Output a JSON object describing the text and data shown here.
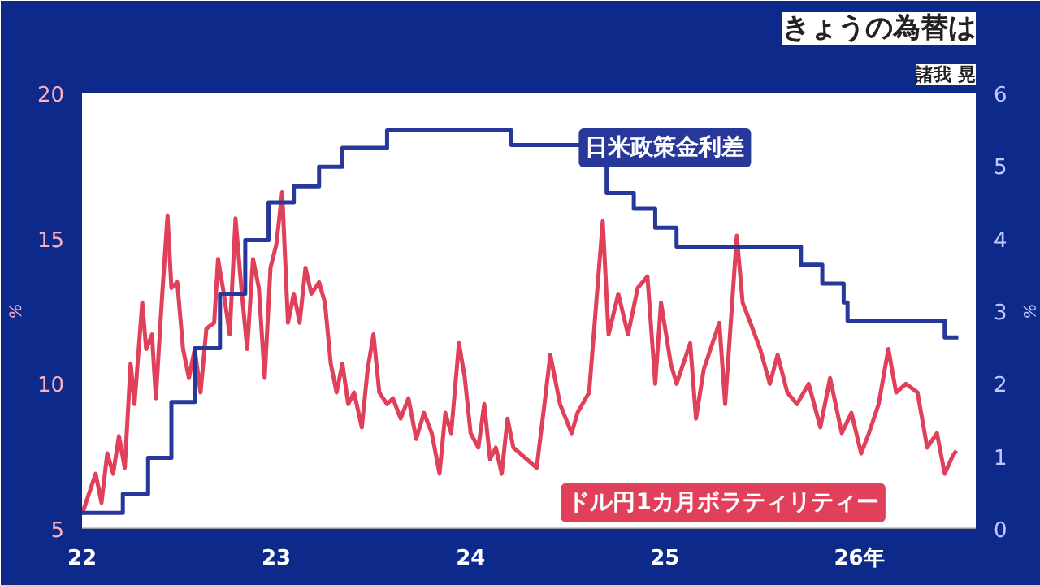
{
  "chart_data": {
    "type": "line",
    "title": "きょうの為替は",
    "subtitle": "諸我 晃",
    "xlim": [
      22,
      26.6
    ],
    "xticks": [
      22,
      23,
      24,
      25,
      {
        "value": 26,
        "label": "26年"
      }
    ],
    "ylim": [
      5,
      20
    ],
    "yticks": [
      5,
      10,
      15,
      20
    ],
    "ylabel": "%",
    "y2lim": [
      0,
      6
    ],
    "y2ticks": [
      0,
      1,
      2,
      3,
      4,
      5,
      6
    ],
    "y2label": "%",
    "grid": false,
    "legend": false,
    "marker": "none",
    "line_style": "solid",
    "series": [
      {
        "name": "ドル円1カ月ボラティリティー",
        "color": "#e0405a",
        "x": [
          22.0,
          22.03,
          22.07,
          22.1,
          22.13,
          22.16,
          22.19,
          22.22,
          22.25,
          22.27,
          22.31,
          22.33,
          22.36,
          22.38,
          22.41,
          22.44,
          22.46,
          22.49,
          22.52,
          22.55,
          22.58,
          22.61,
          22.64,
          22.68,
          22.7,
          22.73,
          22.76,
          22.79,
          22.82,
          22.85,
          22.88,
          22.91,
          22.94,
          22.97,
          23.0,
          23.03,
          23.06,
          23.09,
          23.12,
          23.15,
          23.18,
          23.22,
          23.25,
          23.28,
          23.31,
          23.34,
          23.37,
          23.4,
          23.44,
          23.47,
          23.5,
          23.53,
          23.57,
          23.6,
          23.64,
          23.68,
          23.72,
          23.76,
          23.8,
          23.84,
          23.87,
          23.9,
          23.94,
          23.97,
          24.0,
          24.04,
          24.07,
          24.1,
          24.13,
          24.16,
          24.19,
          24.22,
          24.34,
          24.38,
          24.41,
          24.46,
          24.52,
          24.55,
          24.61,
          24.68,
          24.71,
          24.76,
          24.81,
          24.86,
          24.91,
          24.95,
          24.98,
          25.03,
          25.06,
          25.13,
          25.16,
          25.2,
          25.28,
          25.31,
          25.37,
          25.4,
          25.44,
          25.49,
          25.54,
          25.58,
          25.63,
          25.68,
          25.74,
          25.8,
          25.85,
          25.91,
          25.96,
          26.01,
          26.05,
          26.1,
          26.15,
          26.19,
          26.24,
          26.3,
          26.35,
          26.4,
          26.44,
          26.48,
          26.5
        ],
        "values": [
          5.5,
          6.1,
          6.9,
          5.9,
          7.6,
          6.9,
          8.2,
          7.1,
          10.7,
          9.3,
          12.8,
          11.2,
          11.7,
          9.5,
          12.8,
          15.8,
          13.3,
          13.5,
          11.2,
          10.2,
          11.2,
          9.7,
          11.9,
          12.1,
          14.3,
          13.1,
          11.7,
          15.7,
          13.3,
          11.2,
          14.3,
          13.3,
          10.2,
          14.0,
          14.8,
          16.6,
          12.1,
          13.1,
          12.1,
          14.0,
          13.1,
          13.5,
          12.8,
          10.7,
          9.7,
          10.7,
          9.3,
          9.7,
          8.5,
          10.5,
          11.7,
          9.7,
          9.3,
          9.5,
          8.8,
          9.5,
          8.1,
          9.0,
          8.3,
          6.9,
          9.0,
          8.3,
          11.4,
          10.2,
          8.3,
          7.8,
          9.3,
          7.4,
          7.8,
          6.9,
          8.8,
          7.8,
          7.1,
          9.3,
          11.0,
          9.3,
          8.3,
          9.0,
          9.7,
          15.6,
          11.7,
          13.1,
          11.7,
          13.3,
          13.7,
          10.0,
          12.8,
          10.7,
          10.0,
          11.4,
          8.8,
          10.5,
          12.1,
          9.3,
          15.1,
          12.8,
          12.1,
          11.2,
          10.0,
          11.0,
          9.7,
          9.3,
          10.0,
          8.5,
          10.2,
          8.3,
          9.0,
          7.6,
          8.3,
          9.3,
          11.2,
          9.7,
          10.0,
          9.7,
          7.8,
          8.3,
          6.9,
          7.5,
          7.7
        ]
      },
      {
        "name": "日米政策金利差",
        "type": "step",
        "axis": "y2",
        "color": "#28379a",
        "x": [
          22.0,
          22.21,
          22.34,
          22.46,
          22.58,
          22.71,
          22.84,
          22.96,
          23.09,
          23.22,
          23.34,
          23.57,
          24.21,
          24.57,
          24.7,
          24.84,
          24.95,
          25.06,
          25.7,
          25.81,
          25.92,
          25.94,
          26.44,
          26.51
        ],
        "values": [
          0.22,
          0.48,
          0.98,
          1.75,
          2.49,
          3.24,
          3.98,
          4.5,
          4.72,
          4.99,
          5.25,
          5.49,
          5.29,
          5.13,
          4.63,
          4.41,
          4.15,
          3.89,
          3.64,
          3.38,
          3.12,
          2.87,
          2.64,
          2.64
        ]
      }
    ]
  }
}
